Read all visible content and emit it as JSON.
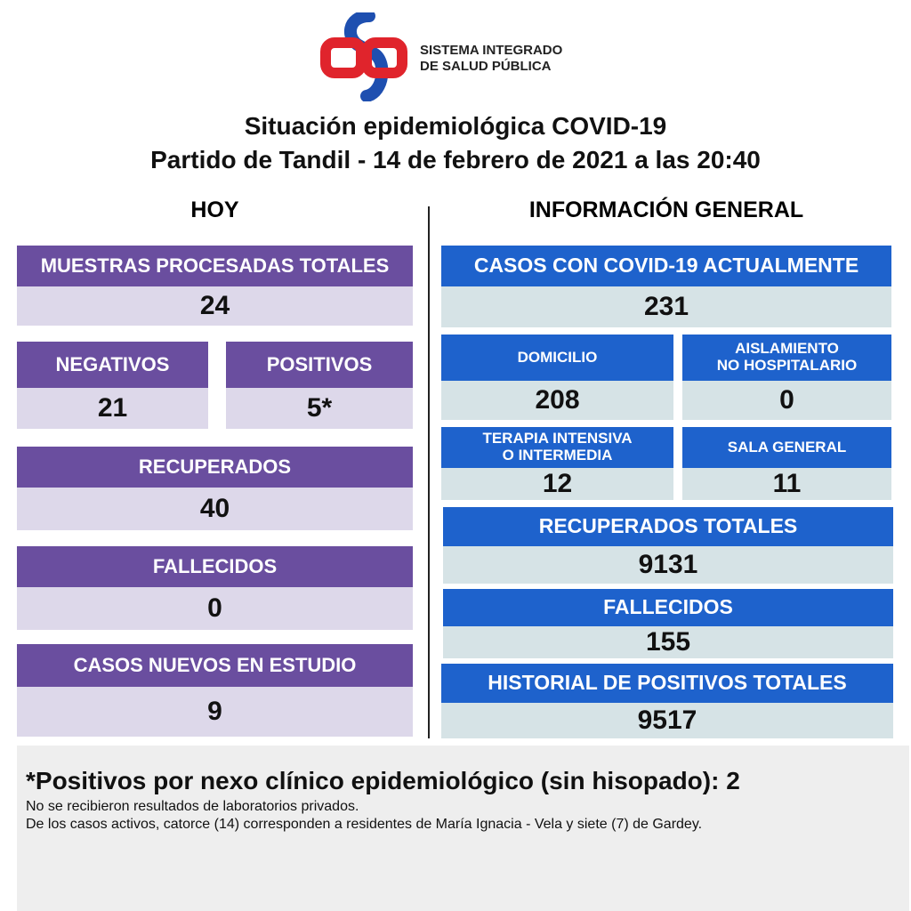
{
  "header": {
    "org_line1": "SISTEMA INTEGRADO",
    "org_line2": "DE SALUD PÚBLICA",
    "title": "Situación epidemiológica COVID-19",
    "subtitle": "Partido de Tandil - 14 de febrero de 2021 a las 20:40"
  },
  "today": {
    "heading": "HOY",
    "boxes": [
      {
        "label": "MUESTRAS PROCESADAS TOTALES",
        "value": 24
      },
      {
        "label": "NEGATIVOS",
        "value": 21
      },
      {
        "label": "POSITIVOS",
        "value": "5*"
      },
      {
        "label": "RECUPERADOS",
        "value": 40
      },
      {
        "label": "FALLECIDOS",
        "value": 0
      },
      {
        "label": "CASOS NUEVOS EN ESTUDIO",
        "value": 9
      }
    ]
  },
  "general": {
    "heading": "INFORMACIÓN GENERAL",
    "boxes": [
      {
        "label": "CASOS CON COVID-19 ACTUALMENTE",
        "value": 231
      },
      {
        "label": "DOMICILIO",
        "value": 208
      },
      {
        "label": "AISLAMIENTO\nNO HOSPITALARIO",
        "value": 0
      },
      {
        "label": "TERAPIA INTENSIVA\nO INTERMEDIA",
        "value": 12
      },
      {
        "label": "SALA GENERAL",
        "value": 11
      },
      {
        "label": "RECUPERADOS TOTALES",
        "value": 9131
      },
      {
        "label": "FALLECIDOS",
        "value": 155
      },
      {
        "label": "HISTORIAL DE POSITIVOS TOTALES",
        "value": 9517
      }
    ]
  },
  "footer": {
    "note": "*Positivos por nexo clínico epidemiológico (sin hisopado): 2",
    "lines": [
      "No se recibieron resultados de laboratorios privados.",
      "De los casos activos, catorce (14) corresponden a residentes de María Ignacia - Vela y siete (7) de Gardey."
    ]
  }
}
